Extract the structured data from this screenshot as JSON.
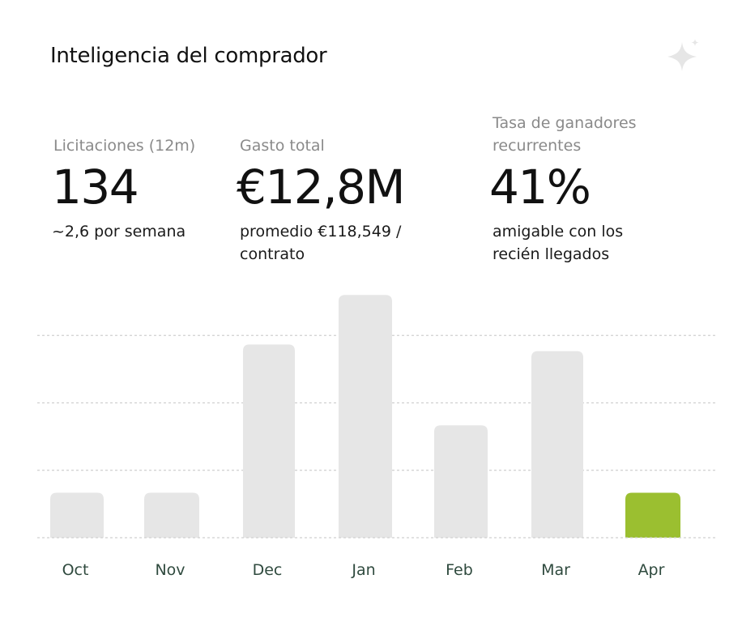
{
  "header": {
    "title": "Inteligencia del comprador",
    "icon": "sparkle-icon"
  },
  "stats": [
    {
      "label": "Licitaciones (12m)",
      "value": "134",
      "sub": "~2,6 por semana"
    },
    {
      "label": "Gasto total",
      "value": "€12,8M",
      "sub": "promedio €118,549 / contrato"
    },
    {
      "label": "Tasa de ganadores recurrentes",
      "value": "41%",
      "sub": "amigable con los recién llegados"
    }
  ],
  "colors": {
    "bar": "#e6e6e6",
    "highlight": "#9bbf30",
    "grid": "#cfcfcf",
    "axis_label": "#2f4a3e",
    "sparkle": "#e6e6e6"
  },
  "chart_data": {
    "type": "bar",
    "categories": [
      "Oct",
      "Nov",
      "Dec",
      "Jan",
      "Feb",
      "Mar",
      "Apr"
    ],
    "values": [
      2,
      2,
      8.6,
      10.8,
      5,
      8.3,
      2
    ],
    "highlight_category": "Apr",
    "ylim": [
      0,
      12
    ],
    "gridlines": [
      3,
      6,
      9
    ],
    "grid": true,
    "xlabel": "",
    "ylabel": ""
  }
}
